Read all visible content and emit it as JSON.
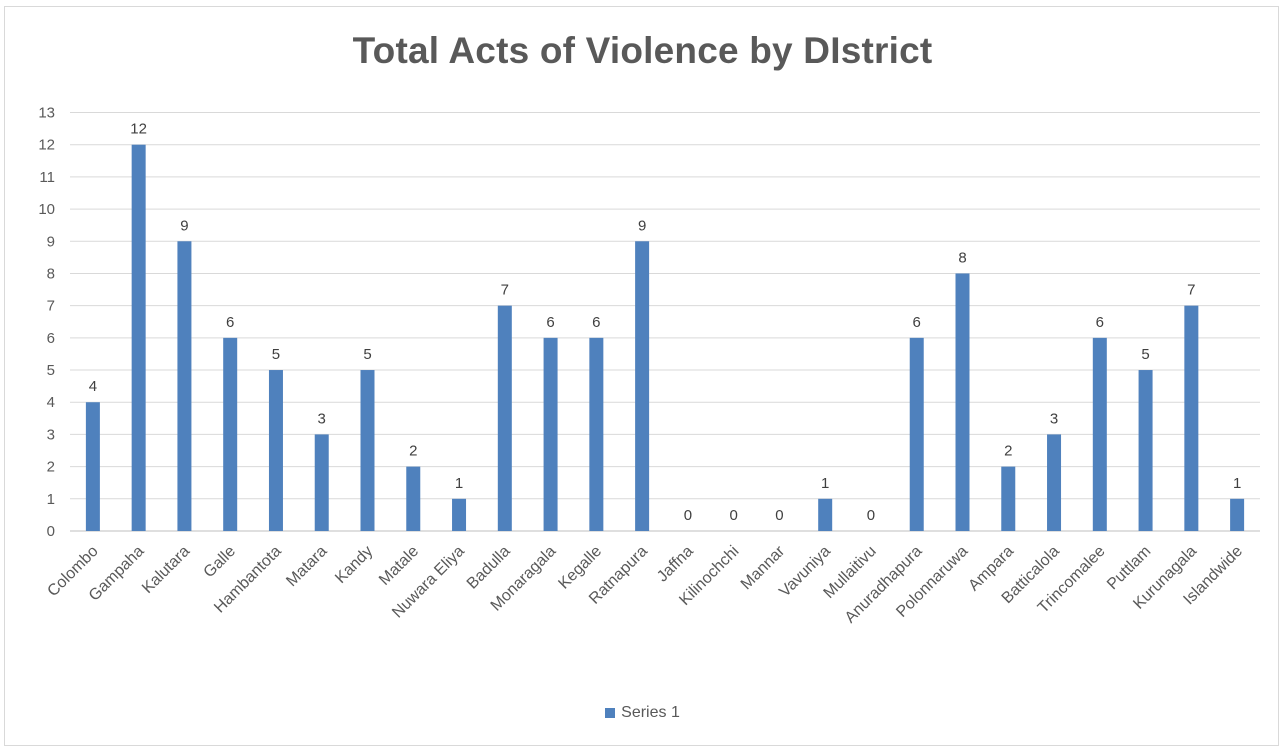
{
  "chart_data": {
    "type": "bar",
    "title": "Total Acts of Violence by DIstrict",
    "xlabel": "",
    "ylabel": "",
    "ylim": [
      0,
      13
    ],
    "yticks": [
      0,
      1,
      2,
      3,
      4,
      5,
      6,
      7,
      8,
      9,
      10,
      11,
      12,
      13
    ],
    "grid": true,
    "legend_position": "bottom",
    "categories": [
      "Colombo",
      "Gampaha",
      "Kalutara",
      "Galle",
      "Hambantota",
      "Matara",
      "Kandy",
      "Matale",
      "Nuwara Eliya",
      "Badulla",
      "Monaragala",
      "Kegalle",
      "Ratnapura",
      "Jaffna",
      "Kilinochchi",
      "Mannar",
      "Vavuniya",
      "Mullaitivu",
      "Anuradhapura",
      "Polonnaruwa",
      "Ampara",
      "Batticalola",
      "Trincomalee",
      "Puttlam",
      "Kurunagala",
      "Islandwide"
    ],
    "series": [
      {
        "name": "Series 1",
        "color": "#4f81bd",
        "values": [
          4,
          12,
          9,
          6,
          5,
          3,
          5,
          2,
          1,
          7,
          6,
          6,
          9,
          0,
          0,
          0,
          1,
          0,
          6,
          8,
          2,
          3,
          6,
          5,
          7,
          1
        ]
      }
    ]
  }
}
